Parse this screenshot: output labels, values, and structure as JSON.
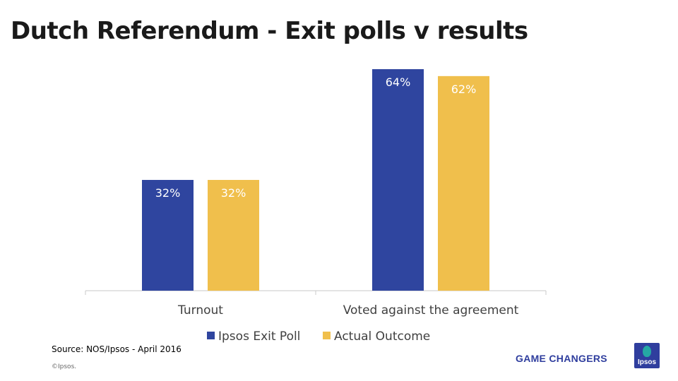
{
  "header": {
    "title": "Dutch Referendum - Exit polls v results"
  },
  "chart_data": {
    "type": "bar",
    "title": "",
    "xlabel": "",
    "ylabel": "",
    "ylim": [
      0,
      70
    ],
    "grid": false,
    "legend_position": "bottom",
    "categories": [
      "Turnout",
      "Voted against the agreement"
    ],
    "series": [
      {
        "name": "Ipsos Exit Poll",
        "values": [
          32,
          64
        ],
        "labels": [
          "32%",
          "64%"
        ],
        "color": "#2f459f"
      },
      {
        "name": "Actual Outcome",
        "values": [
          32,
          62
        ],
        "labels": [
          "32%",
          "62%"
        ],
        "color": "#f0bf4c"
      }
    ]
  },
  "footer": {
    "source": "Source: NOS/Ipsos - April 2016",
    "copyright": "©Ipsos.",
    "tagline": "GAME CHANGERS",
    "logo_text": "Ipsos"
  }
}
